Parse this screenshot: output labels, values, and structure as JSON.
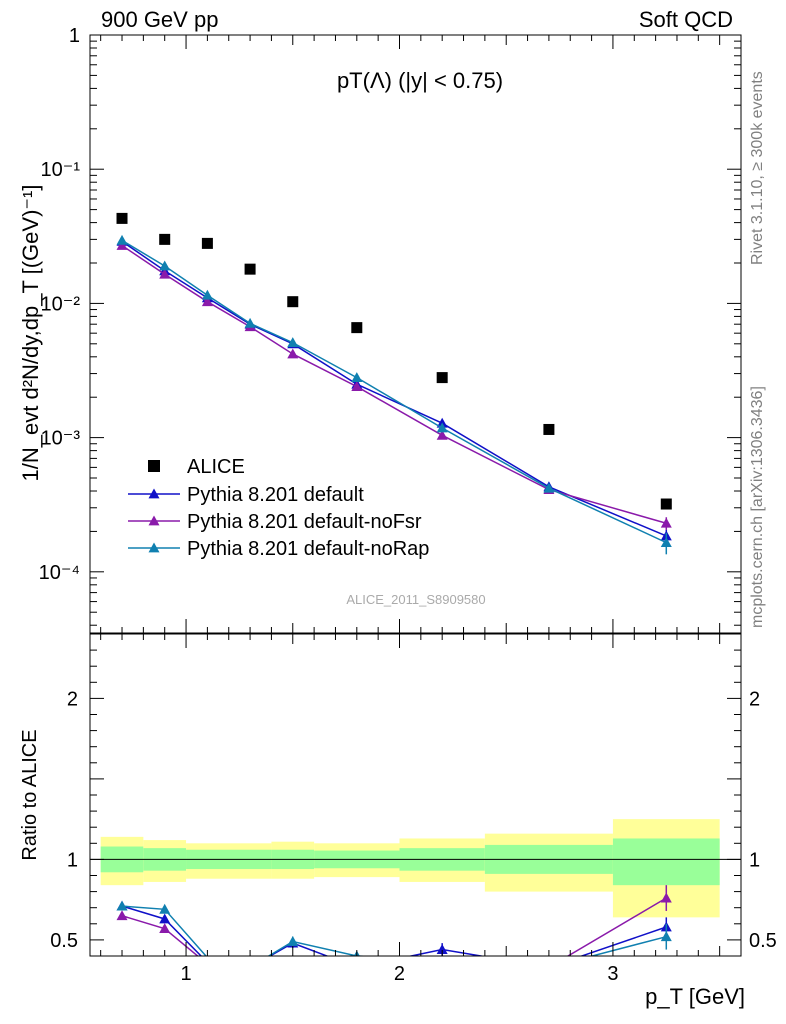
{
  "header": {
    "left": "900 GeV pp",
    "right": "Soft QCD"
  },
  "side_labels": {
    "rivet": "Rivet 3.1.10, ≥ 300k events",
    "mcplots": "mcplots.cern.ch [arXiv:1306.3436]"
  },
  "chart_data": [
    {
      "type": "scatter",
      "title": "pT(Λ) (|y| < 0.75)",
      "xlabel": "p_T [GeV]",
      "ylabel": "1/N_evt d²N/dy,dp_T [(GeV)⁻¹]",
      "xlim": [
        0.55,
        3.6
      ],
      "ylim": [
        3.5e-05,
        1
      ],
      "yscale": "log",
      "watermark": "ALICE_2011_S8909580",
      "legend_position": "lower-left",
      "ytick_labels": [
        "10⁻⁴",
        "10⁻³",
        "10⁻²",
        "10⁻¹",
        "1"
      ],
      "x": [
        0.7,
        0.9,
        1.1,
        1.3,
        1.5,
        1.8,
        2.2,
        2.7,
        3.25
      ],
      "series": [
        {
          "name": "ALICE",
          "marker": "square",
          "color": "#000000",
          "values": [
            0.043,
            0.03,
            0.028,
            0.018,
            0.0103,
            0.0066,
            0.0028,
            0.00115,
            0.00032
          ]
        },
        {
          "name": "Pythia 8.201 default",
          "marker": "triangle",
          "color": "#1010c8",
          "values": [
            0.029,
            0.0175,
            0.011,
            0.007,
            0.005,
            0.0025,
            0.00128,
            0.00043,
            0.000185
          ],
          "errors": [
            0,
            0,
            0,
            0,
            0,
            0,
            0,
            3e-05,
            2e-05
          ]
        },
        {
          "name": "Pythia 8.201 default-noFsr",
          "marker": "triangle",
          "color": "#8a1aaa",
          "values": [
            0.027,
            0.0165,
            0.0103,
            0.0067,
            0.0042,
            0.0024,
            0.00104,
            0.00041,
            0.00023
          ],
          "errors": [
            0,
            0,
            0,
            0,
            0,
            0,
            0,
            3e-05,
            2.5e-05
          ]
        },
        {
          "name": "Pythia 8.201 default-noRap",
          "marker": "triangle",
          "color": "#1080b0",
          "values": [
            0.0295,
            0.019,
            0.0115,
            0.0071,
            0.0051,
            0.0028,
            0.00118,
            0.00042,
            0.000165
          ],
          "errors": [
            0,
            0,
            0,
            0,
            0,
            0,
            0,
            3e-05,
            3e-05
          ]
        }
      ]
    },
    {
      "type": "line",
      "ylabel": "Ratio to ALICE",
      "xlabel": "p_T [GeV]",
      "xlim": [
        0.55,
        3.6
      ],
      "ylim": [
        0.4,
        2.4
      ],
      "ytick_labels": [
        "0.5",
        "1",
        "2"
      ],
      "xtick_labels": [
        "1",
        "2",
        "3"
      ],
      "x": [
        0.7,
        0.9,
        1.1,
        1.3,
        1.5,
        1.8,
        2.2,
        2.7,
        3.25
      ],
      "bands": {
        "edges": [
          0.6,
          0.8,
          1.0,
          1.4,
          1.6,
          2.0,
          2.4,
          3.0,
          3.5
        ],
        "inner": [
          [
            0.92,
            1.08
          ],
          [
            0.93,
            1.07
          ],
          [
            0.94,
            1.06
          ],
          [
            0.94,
            1.06
          ],
          [
            0.945,
            1.055
          ],
          [
            0.93,
            1.07
          ],
          [
            0.91,
            1.09
          ],
          [
            0.84,
            1.13
          ]
        ],
        "outer": [
          [
            0.84,
            1.14
          ],
          [
            0.86,
            1.12
          ],
          [
            0.88,
            1.1
          ],
          [
            0.88,
            1.11
          ],
          [
            0.89,
            1.1
          ],
          [
            0.86,
            1.13
          ],
          [
            0.8,
            1.16
          ],
          [
            0.64,
            1.25
          ]
        ]
      },
      "series": [
        {
          "name": "Pythia 8.201 default",
          "color": "#1010c8",
          "values": [
            0.71,
            0.63,
            0.36,
            0.33,
            0.48,
            0.33,
            0.44,
            0.33,
            0.58
          ],
          "errors": [
            0.01,
            0.015,
            0.02,
            0,
            0.03,
            0,
            0.04,
            0,
            0.06
          ]
        },
        {
          "name": "Pythia 8.201 default-noFsr",
          "color": "#8a1aaa",
          "values": [
            0.65,
            0.57,
            0.35,
            0.33,
            0.37,
            0.33,
            0.33,
            0.33,
            0.76
          ],
          "errors": [
            0.01,
            0.01,
            0.02,
            0,
            0.025,
            0,
            0,
            0,
            0.08
          ]
        },
        {
          "name": "Pythia 8.201 default-noRap",
          "color": "#1080b0",
          "values": [
            0.71,
            0.69,
            0.39,
            0.33,
            0.49,
            0.4,
            0.38,
            0.33,
            0.52
          ],
          "errors": [
            0.01,
            0.01,
            0.02,
            0,
            0.03,
            0.02,
            0.02,
            0,
            0.08
          ]
        }
      ]
    }
  ]
}
